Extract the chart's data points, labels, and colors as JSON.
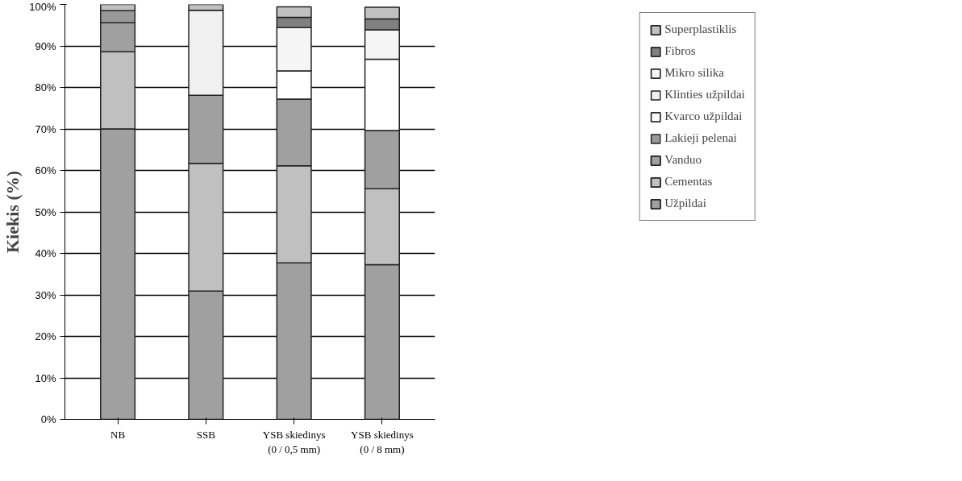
{
  "chart_data": {
    "type": "bar",
    "stacked": true,
    "ylabel": "Kiekis (%)",
    "categories": [
      "NB",
      "SSB",
      "YSB skiedinys\n(0 / 0,5 mm)",
      "YSB skiedinys\n(0 / 8 mm)"
    ],
    "series": [
      {
        "name": "Užpildai",
        "color": "#a0a0a0",
        "values": [
          70,
          30.9,
          37.7,
          37.3
        ]
      },
      {
        "name": "Cementas",
        "color": "#c0c0c0",
        "values": [
          18.6,
          30.8,
          23.4,
          18.3
        ]
      },
      {
        "name": "Vanduo",
        "color": "#a0a0a0",
        "values": [
          7.0,
          16.4,
          16.1,
          14.0
        ]
      },
      {
        "name": "Lakieji pelenai",
        "color": "#999999",
        "values": [
          2.9,
          null,
          null,
          null
        ]
      },
      {
        "name": "Kvarco užpildai",
        "color": "#ffffff",
        "values": [
          null,
          null,
          6.8,
          17.2
        ]
      },
      {
        "name": "Klinties užpildai",
        "color": "#f0f0f0",
        "values": [
          null,
          20.5,
          null,
          null
        ]
      },
      {
        "name": "Mikro silika",
        "color": "#f5f5f5",
        "values": [
          null,
          null,
          10.4,
          7.1
        ]
      },
      {
        "name": "Fibros",
        "color": "#808080",
        "values": [
          null,
          null,
          2.5,
          2.6
        ]
      },
      {
        "name": "Superplastiklis",
        "color": "#c0c0c0",
        "values": [
          1.5,
          1.4,
          2.5,
          2.8
        ]
      }
    ],
    "ylim": [
      0,
      100
    ],
    "yticks": [
      {
        "value": 0,
        "label": "0%"
      },
      {
        "value": 10,
        "label": "10%"
      },
      {
        "value": 20,
        "label": "20%"
      },
      {
        "value": 30,
        "label": "30%"
      },
      {
        "value": 40,
        "label": "40%"
      },
      {
        "value": 50,
        "label": "50%"
      },
      {
        "value": 60,
        "label": "60%"
      },
      {
        "value": 70,
        "label": "70%"
      },
      {
        "value": 80,
        "label": "80%"
      },
      {
        "value": 90,
        "label": "90%"
      },
      {
        "value": 100,
        "label": "100%"
      }
    ],
    "grid": "y",
    "legend": "top right"
  }
}
